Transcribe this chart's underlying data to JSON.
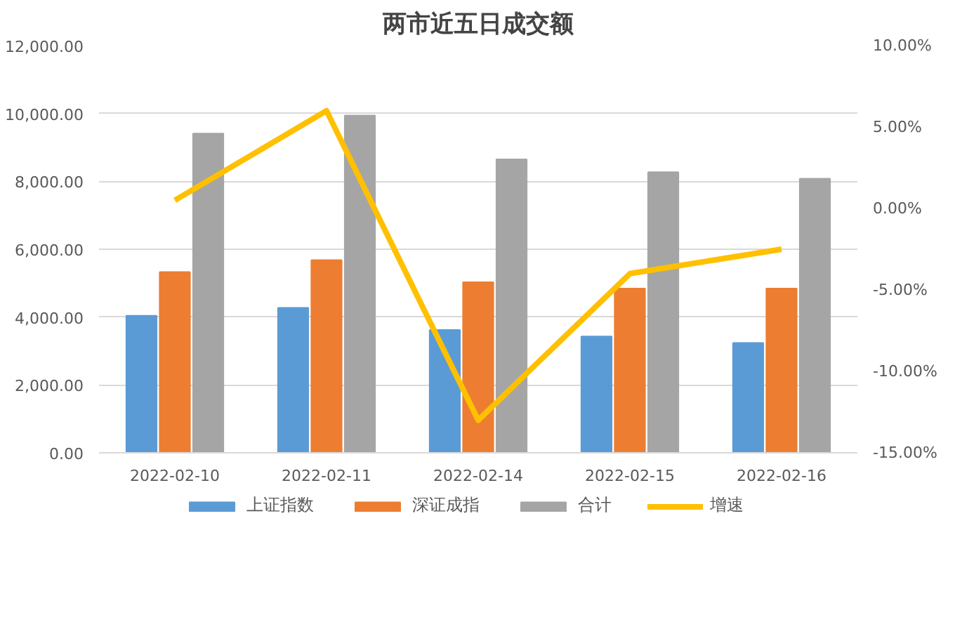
{
  "chart_data": {
    "type": "bar",
    "title": "两市近五日成交额",
    "categories": [
      "2022-02-10",
      "2022-02-11",
      "2022-02-14",
      "2022-02-15",
      "2022-02-16"
    ],
    "series": [
      {
        "name": "上证指数",
        "color": "#5b9bd5",
        "values": [
          4040,
          4270,
          3620,
          3430,
          3240
        ]
      },
      {
        "name": "深证成指",
        "color": "#ed7d31",
        "values": [
          5330,
          5680,
          5030,
          4840,
          4840
        ]
      },
      {
        "name": "合计",
        "color": "#a5a5a5",
        "values": [
          9410,
          9940,
          8650,
          8270,
          8080
        ]
      },
      {
        "name": "增速",
        "color": "#ffc000",
        "type": "line",
        "axis": "y2",
        "values": [
          0.5,
          6.0,
          -13.0,
          -4.0,
          -2.5
        ]
      }
    ],
    "ylim": [
      0,
      12000
    ],
    "yticks": [
      {
        "value": 0,
        "label": "0.00"
      },
      {
        "value": 2000,
        "label": "2,000.00"
      },
      {
        "value": 4000,
        "label": "4,000.00"
      },
      {
        "value": 6000,
        "label": "6,000.00"
      },
      {
        "value": 8000,
        "label": "8,000.00"
      },
      {
        "value": 10000,
        "label": "10,000.00"
      },
      {
        "value": 12000,
        "label": "12,000.00"
      }
    ],
    "y2lim": [
      -15,
      10
    ],
    "y2ticks": [
      {
        "value": -15,
        "label": "-15.00%"
      },
      {
        "value": -10,
        "label": "-10.00%"
      },
      {
        "value": -5,
        "label": "-5.00%"
      },
      {
        "value": 0,
        "label": "0.00%"
      },
      {
        "value": 5,
        "label": "5.00%"
      },
      {
        "value": 10,
        "label": "10.00%"
      }
    ],
    "grid": "y",
    "legend": "bottom"
  }
}
